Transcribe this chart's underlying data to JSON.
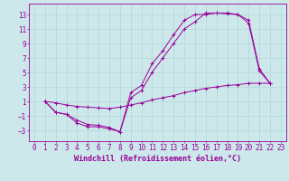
{
  "bg_color": "#cce8ea",
  "line_color": "#990099",
  "xlim": [
    -0.5,
    23.5
  ],
  "ylim": [
    -4.5,
    14.5
  ],
  "yticks": [
    -3,
    -1,
    1,
    3,
    5,
    7,
    9,
    11,
    13
  ],
  "xticks": [
    0,
    1,
    2,
    3,
    4,
    5,
    6,
    7,
    8,
    9,
    10,
    11,
    12,
    13,
    14,
    15,
    16,
    17,
    18,
    19,
    20,
    21,
    22,
    23
  ],
  "line1_x": [
    1,
    2,
    3,
    4,
    5,
    6,
    7,
    8,
    9,
    10,
    11,
    12,
    13,
    14,
    15,
    16,
    17,
    18,
    19,
    20,
    21,
    22
  ],
  "line1_y": [
    1.0,
    -0.5,
    -0.8,
    -1.6,
    -2.2,
    -2.3,
    -2.6,
    -3.2,
    2.2,
    3.2,
    6.2,
    8.0,
    10.2,
    12.2,
    13.0,
    13.0,
    13.2,
    13.1,
    13.0,
    11.8,
    5.2,
    3.5
  ],
  "line2_x": [
    1,
    2,
    3,
    4,
    5,
    6,
    7,
    8,
    9,
    10,
    11,
    12,
    13,
    14,
    15,
    16,
    17,
    18,
    19,
    20,
    21,
    22
  ],
  "line2_y": [
    1.0,
    -0.5,
    -0.8,
    -2.0,
    -2.5,
    -2.5,
    -2.8,
    -3.2,
    1.5,
    2.5,
    5.0,
    7.0,
    9.0,
    11.0,
    12.0,
    13.2,
    13.2,
    13.2,
    13.0,
    12.2,
    5.5,
    3.5
  ],
  "line3_x": [
    1,
    2,
    3,
    4,
    5,
    6,
    7,
    8,
    9,
    10,
    11,
    12,
    13,
    14,
    15,
    16,
    17,
    18,
    19,
    20,
    21,
    22
  ],
  "line3_y": [
    1.0,
    0.8,
    0.5,
    0.3,
    0.2,
    0.1,
    0.0,
    0.2,
    0.5,
    0.8,
    1.2,
    1.5,
    1.8,
    2.2,
    2.5,
    2.8,
    3.0,
    3.2,
    3.3,
    3.5,
    3.5,
    3.5
  ],
  "grid_color": "#aad4d8",
  "xlabel": "Windchill (Refroidissement éolien,°C)",
  "font_size_xlabel": 6,
  "font_size_tick": 5.5
}
